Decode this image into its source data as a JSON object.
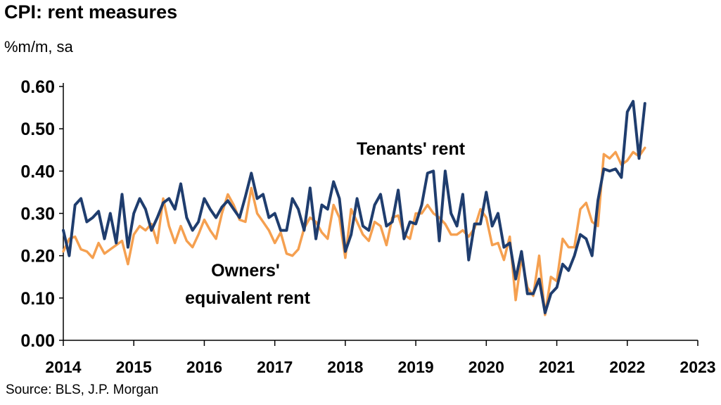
{
  "title": "CPI: rent measures",
  "subtitle": "%m/m, sa",
  "source": "Source: BLS, J.P. Morgan",
  "chart_data": {
    "type": "line",
    "ylim": [
      0,
      0.6
    ],
    "yticks": [
      "0.00",
      "0.10",
      "0.20",
      "0.30",
      "0.40",
      "0.50",
      "0.60"
    ],
    "xlim": [
      2014,
      2023
    ],
    "xticks": [
      "2014",
      "2015",
      "2016",
      "2017",
      "2018",
      "2019",
      "2020",
      "2021",
      "2022",
      "2023"
    ],
    "grid": false,
    "start": "2014-01",
    "frequency": "monthly",
    "annotations": [
      {
        "text": "Tenants' rent",
        "series": "tenants"
      },
      {
        "text": "Owners'",
        "series": "oer"
      },
      {
        "text": "equivalent rent",
        "series": "oer"
      }
    ],
    "series": [
      {
        "id": "tenants",
        "color": "#1F3D6E",
        "values": [
          0.26,
          0.2,
          0.32,
          0.335,
          0.28,
          0.29,
          0.305,
          0.24,
          0.3,
          0.23,
          0.345,
          0.22,
          0.3,
          0.335,
          0.31,
          0.26,
          0.29,
          0.325,
          0.335,
          0.31,
          0.37,
          0.29,
          0.26,
          0.28,
          0.335,
          0.31,
          0.29,
          0.315,
          0.33,
          0.31,
          0.29,
          0.34,
          0.395,
          0.335,
          0.345,
          0.29,
          0.3,
          0.26,
          0.26,
          0.335,
          0.31,
          0.26,
          0.36,
          0.24,
          0.32,
          0.31,
          0.375,
          0.335,
          0.21,
          0.25,
          0.335,
          0.27,
          0.26,
          0.32,
          0.345,
          0.27,
          0.28,
          0.355,
          0.24,
          0.28,
          0.275,
          0.32,
          0.395,
          0.4,
          0.235,
          0.4,
          0.3,
          0.27,
          0.345,
          0.19,
          0.275,
          0.275,
          0.35,
          0.27,
          0.3,
          0.22,
          0.23,
          0.145,
          0.21,
          0.11,
          0.11,
          0.145,
          0.065,
          0.11,
          0.125,
          0.18,
          0.165,
          0.2,
          0.25,
          0.24,
          0.2,
          0.33,
          0.405,
          0.4,
          0.405,
          0.385,
          0.54,
          0.565,
          0.43,
          0.56
        ]
      },
      {
        "id": "oer",
        "color": "#F5A050",
        "values": [
          0.21,
          0.24,
          0.245,
          0.215,
          0.21,
          0.195,
          0.23,
          0.205,
          0.215,
          0.225,
          0.235,
          0.18,
          0.25,
          0.27,
          0.26,
          0.275,
          0.23,
          0.335,
          0.27,
          0.23,
          0.27,
          0.235,
          0.22,
          0.25,
          0.285,
          0.26,
          0.24,
          0.3,
          0.345,
          0.32,
          0.285,
          0.28,
          0.36,
          0.3,
          0.28,
          0.26,
          0.23,
          0.255,
          0.205,
          0.2,
          0.215,
          0.265,
          0.29,
          0.28,
          0.255,
          0.24,
          0.32,
          0.29,
          0.195,
          0.31,
          0.28,
          0.25,
          0.235,
          0.28,
          0.27,
          0.225,
          0.29,
          0.295,
          0.25,
          0.24,
          0.3,
          0.3,
          0.32,
          0.3,
          0.29,
          0.275,
          0.25,
          0.25,
          0.26,
          0.245,
          0.265,
          0.31,
          0.29,
          0.225,
          0.23,
          0.19,
          0.245,
          0.095,
          0.195,
          0.125,
          0.105,
          0.2,
          0.06,
          0.15,
          0.14,
          0.24,
          0.22,
          0.22,
          0.31,
          0.325,
          0.28,
          0.27,
          0.44,
          0.43,
          0.445,
          0.415,
          0.425,
          0.445,
          0.435,
          0.455
        ]
      }
    ]
  }
}
